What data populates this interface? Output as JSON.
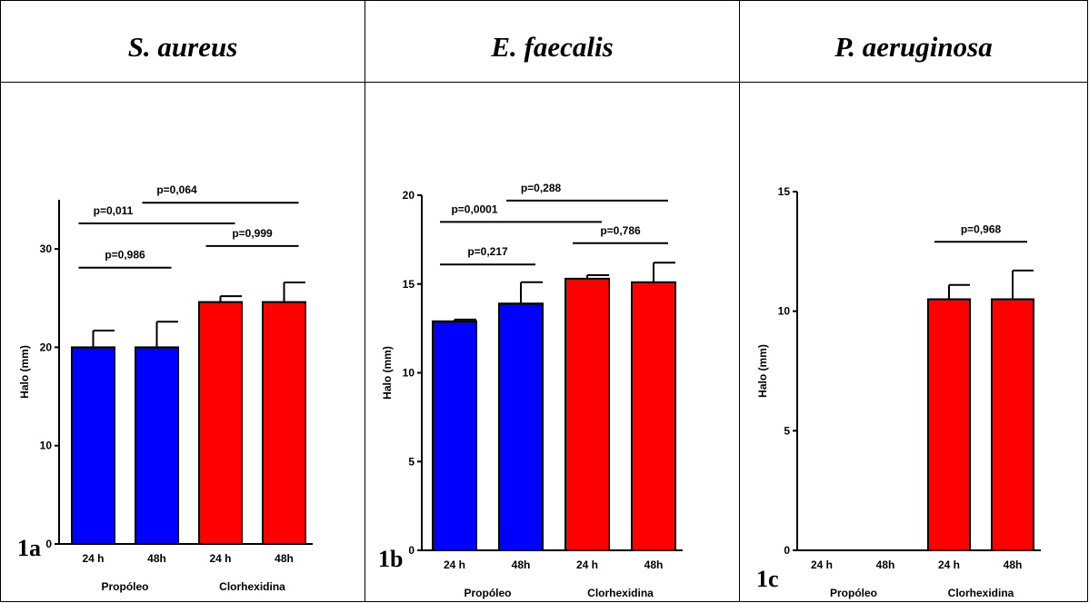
{
  "panels": [
    {
      "title": "S. aureus",
      "label": "1a"
    },
    {
      "title": "E. faecalis",
      "label": "1b"
    },
    {
      "title": "P. aeruginosa",
      "label": "1c"
    }
  ],
  "chart_data": [
    {
      "type": "bar",
      "ylabel": "Halo (mm)",
      "ylim": [
        0,
        35
      ],
      "yticks": [
        0,
        10,
        20,
        30
      ],
      "categories": [
        "24 h",
        "48h",
        "24 h",
        "48h"
      ],
      "groups": [
        {
          "label": "Propóleo",
          "span": [
            0,
            1
          ]
        },
        {
          "label": "Clorhexidina",
          "span": [
            2,
            3
          ]
        }
      ],
      "values": [
        20.0,
        20.0,
        24.6,
        24.6
      ],
      "errors": [
        1.7,
        2.6,
        0.6,
        2.0
      ],
      "colors": [
        "#0000ff",
        "#0000ff",
        "#ff0000",
        "#ff0000"
      ],
      "annotations": [
        {
          "text": "p=0,986",
          "from": 0,
          "to": 1,
          "y": 28.1
        },
        {
          "text": "p=0,011",
          "from": 0,
          "to": 2,
          "y": 32.6
        },
        {
          "text": "p=0,064",
          "from": 1,
          "to": 3,
          "y": 34.7
        },
        {
          "text": "p=0,999",
          "from": 2,
          "to": 3,
          "y": 30.3
        }
      ]
    },
    {
      "type": "bar",
      "ylabel": "Halo (mm)",
      "ylim": [
        0,
        20
      ],
      "yticks": [
        0,
        5,
        10,
        15,
        20
      ],
      "categories": [
        "24 h",
        "48h",
        "24 h",
        "48h"
      ],
      "groups": [
        {
          "label": "Propóleo",
          "span": [
            0,
            1
          ]
        },
        {
          "label": "Clorhexidina",
          "span": [
            2,
            3
          ]
        }
      ],
      "values": [
        12.9,
        13.9,
        15.3,
        15.1
      ],
      "errors": [
        0.1,
        1.2,
        0.2,
        1.1
      ],
      "colors": [
        "#0000ff",
        "#0000ff",
        "#ff0000",
        "#ff0000"
      ],
      "annotations": [
        {
          "text": "p=0,217",
          "from": 0,
          "to": 1,
          "y": 16.1
        },
        {
          "text": "p=0,0001",
          "from": 0,
          "to": 2,
          "y": 18.5
        },
        {
          "text": "p=0,288",
          "from": 1,
          "to": 3,
          "y": 19.7
        },
        {
          "text": "p=0,786",
          "from": 2,
          "to": 3,
          "y": 17.3
        }
      ]
    },
    {
      "type": "bar",
      "ylabel": "Halo (mm)",
      "ylim": [
        0,
        15
      ],
      "yticks": [
        0,
        5,
        10,
        15
      ],
      "categories": [
        "24 h",
        "48h",
        "24 h",
        "48h"
      ],
      "groups": [
        {
          "label": "Propóleo",
          "span": [
            0,
            1
          ]
        },
        {
          "label": "Clorhexidina",
          "span": [
            2,
            3
          ]
        }
      ],
      "values": [
        0,
        0,
        10.5,
        10.5
      ],
      "errors": [
        0,
        0,
        0.6,
        1.2
      ],
      "colors": [
        "#0000ff",
        "#0000ff",
        "#ff0000",
        "#ff0000"
      ],
      "annotations": [
        {
          "text": "p=0,968",
          "from": 2,
          "to": 3,
          "y": 12.9
        }
      ]
    }
  ]
}
